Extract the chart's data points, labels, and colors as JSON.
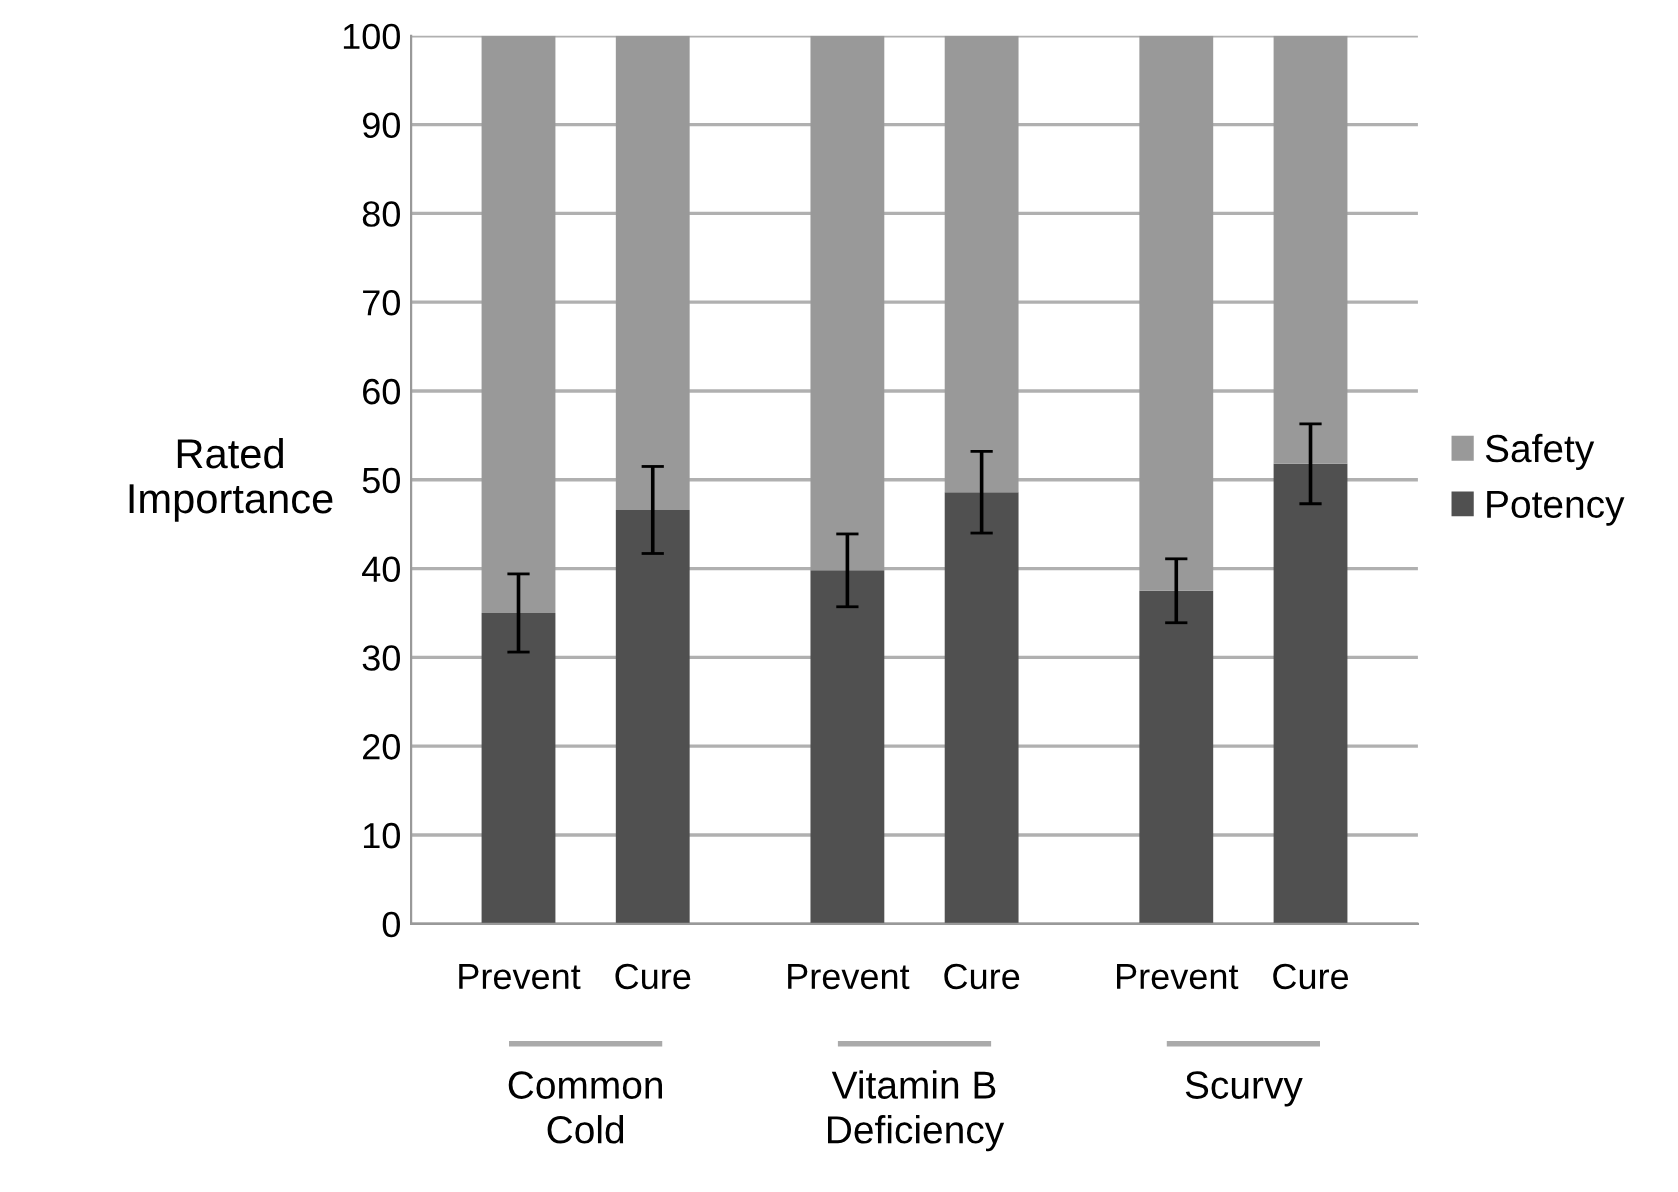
{
  "chart_data": {
    "type": "bar",
    "stacked": true,
    "ylabel": "Rated\nImportance",
    "categories": [
      "Prevent",
      "Cure",
      "Prevent",
      "Cure",
      "Prevent",
      "Cure"
    ],
    "annotations": [
      "Common\nCold",
      "Vitamin B\nDeficiency",
      "Scurvy"
    ],
    "series": [
      {
        "name": "Potency",
        "color": "#505050",
        "values": [
          35,
          46.6,
          39.8,
          48.6,
          37.5,
          51.8
        ],
        "errors": [
          4.4,
          4.9,
          4.1,
          4.6,
          3.6,
          4.5
        ]
      },
      {
        "name": "Safety",
        "color": "#999999",
        "values": [
          65,
          53.4,
          60.2,
          51.4,
          62.5,
          48.2
        ]
      }
    ],
    "ylim": [
      0,
      100
    ],
    "yticks": [
      0,
      10,
      20,
      30,
      40,
      50,
      60,
      70,
      80,
      90,
      100
    ],
    "grid": "y",
    "legend": "right"
  }
}
